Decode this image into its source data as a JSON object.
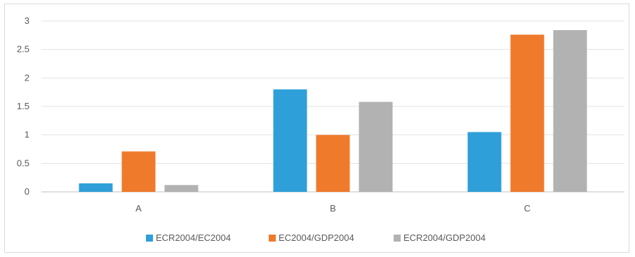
{
  "chart_data": {
    "type": "bar",
    "title": "",
    "xlabel": "",
    "ylabel": "",
    "categories": [
      "A",
      "B",
      "C"
    ],
    "series": [
      {
        "name": "ECR2004/EC2004",
        "color": "#2e9fd8",
        "values": [
          0.15,
          1.8,
          1.05
        ]
      },
      {
        "name": "EC2004/GDP2004",
        "color": "#ef7a2b",
        "values": [
          0.71,
          1.0,
          2.76
        ]
      },
      {
        "name": "ECR2004/GDP2004",
        "color": "#b2b2b2",
        "values": [
          0.12,
          1.58,
          2.84
        ]
      }
    ],
    "ylim": [
      0,
      3
    ],
    "yticks": [
      "0",
      "0.5",
      "1",
      "1.5",
      "2",
      "2.5",
      "3"
    ],
    "grid": true,
    "legend_position": "bottom"
  }
}
